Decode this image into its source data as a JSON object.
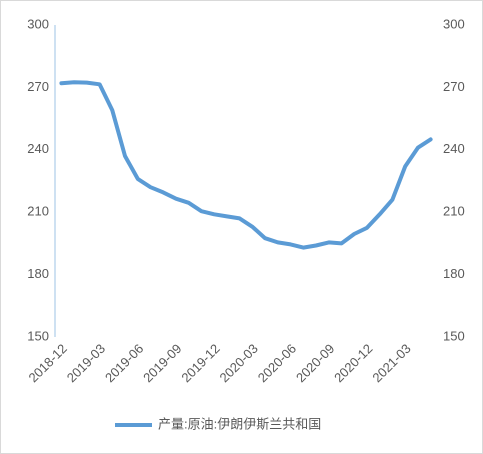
{
  "chart_data": {
    "type": "line",
    "categories": [
      "2018-12",
      null,
      null,
      "2019-03",
      null,
      null,
      "2019-06",
      null,
      null,
      "2019-09",
      null,
      null,
      "2019-12",
      null,
      null,
      "2020-03",
      null,
      null,
      "2020-06",
      null,
      null,
      "2020-09",
      null,
      null,
      "2020-12",
      null,
      null,
      "2021-03",
      null,
      null
    ],
    "series": [
      {
        "name": "产量:原油:伊朗伊斯兰共和国",
        "color": "#5b9bd5",
        "values": [
          272,
          272.5,
          272.3,
          271.5,
          259,
          237,
          226,
          222,
          219.5,
          216.5,
          214.5,
          210.5,
          209,
          208,
          207,
          203,
          197.5,
          195.5,
          194.5,
          193,
          194,
          195.5,
          195,
          199.5,
          202.5,
          209,
          216,
          232,
          241,
          245
        ]
      }
    ],
    "ylim": [
      150,
      300
    ],
    "yticks": [
      150,
      180,
      210,
      240,
      270,
      300
    ],
    "y2lim": [
      150,
      300
    ],
    "y2ticks": [
      150,
      180,
      210,
      240,
      270,
      300
    ],
    "legend": "bottom"
  }
}
